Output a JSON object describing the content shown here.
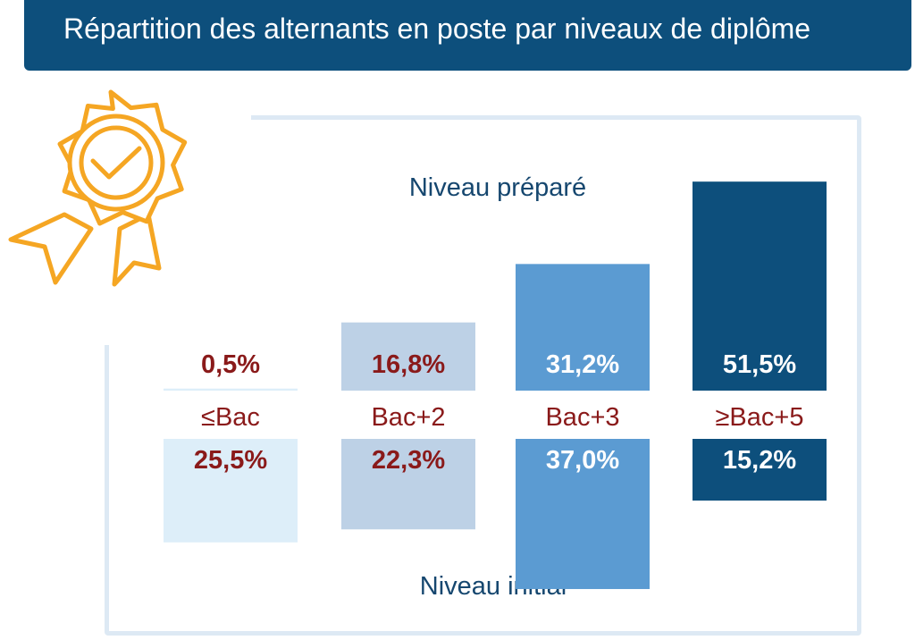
{
  "header": {
    "title": "Répartition des alternants en poste par niveaux de diplôme"
  },
  "badge_icon": "award-ribbon-check-icon",
  "colors": {
    "title_bar": "#0d4f7c",
    "frame": "#dde9f4",
    "badge": "#f5a623",
    "label_dark_red": "#8a1a1a",
    "label_white": "#ffffff",
    "section_label": "#16476f"
  },
  "chart_data": {
    "type": "bar",
    "layout": "mirrored",
    "categories": [
      "≤Bac",
      "Bac+2",
      "Bac+3",
      "≥Bac+5"
    ],
    "series": [
      {
        "name": "Niveau préparé",
        "values": [
          0.5,
          16.8,
          31.2,
          51.5
        ],
        "labels": [
          "0,5%",
          "16,8%",
          "31,2%",
          "51,5%"
        ]
      },
      {
        "name": "Niveau initial",
        "values": [
          25.5,
          22.3,
          37.0,
          15.2
        ],
        "labels": [
          "25,5%",
          "22,3%",
          "37,0%",
          "15,2%"
        ]
      }
    ],
    "bar_colors": [
      "#ddeef9",
      "#bdd1e6",
      "#5b9bd2",
      "#0d4f7c"
    ],
    "label_colors": [
      "#8a1a1a",
      "#8a1a1a",
      "#ffffff",
      "#ffffff"
    ],
    "unit": "%"
  }
}
